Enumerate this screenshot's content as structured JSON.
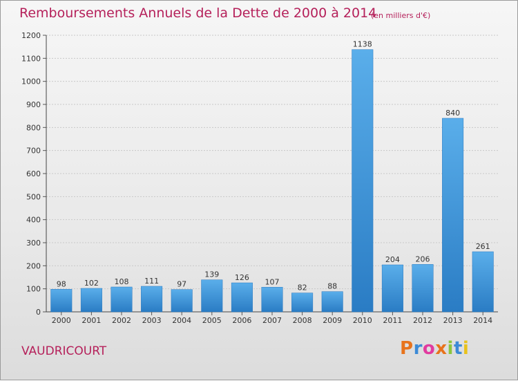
{
  "chart_data": {
    "type": "bar",
    "title": "Remboursements Annuels de la Dette de 2000 à 2014",
    "subtitle": "(en milliers d'€)",
    "categories": [
      "2000",
      "2001",
      "2002",
      "2003",
      "2004",
      "2005",
      "2006",
      "2007",
      "2008",
      "2009",
      "2010",
      "2011",
      "2012",
      "2013",
      "2014"
    ],
    "values": [
      98,
      102,
      108,
      111,
      97,
      139,
      126,
      107,
      82,
      88,
      1138,
      204,
      206,
      840,
      261
    ],
    "ylim": [
      0,
      1200
    ],
    "yticks": [
      0,
      100,
      200,
      300,
      400,
      500,
      600,
      700,
      800,
      900,
      1000,
      1100,
      1200
    ],
    "grid": true,
    "bar_color": "#3a92d6"
  },
  "footer": {
    "commune": "VAUDRICOURT",
    "logo_text": "Proxiti",
    "logo_colors": [
      "#e8731c",
      "#3c8ad6",
      "#e13ba0",
      "#e8731c",
      "#8cc63e",
      "#3c8ad6",
      "#e8c21c"
    ]
  }
}
